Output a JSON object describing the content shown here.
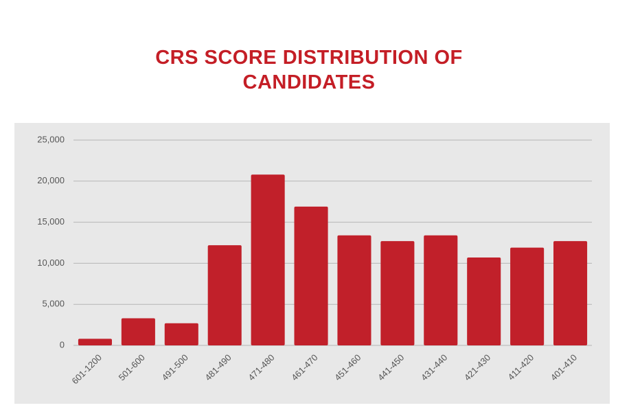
{
  "chart_data": {
    "type": "bar",
    "title": "CRS SCORE DISTRIBUTION OF CANDIDATES",
    "categories": [
      "601-1200",
      "501-600",
      "491-500",
      "481-490",
      "471-480",
      "461-470",
      "451-460",
      "441-450",
      "431-440",
      "421-430",
      "411-420",
      "401-410"
    ],
    "values": [
      800,
      3300,
      2700,
      12200,
      20800,
      16900,
      13400,
      12700,
      13400,
      10700,
      11900,
      12700
    ],
    "color": "#c1202a",
    "ylim": [
      0,
      25000
    ],
    "yticks": [
      0,
      {
        "value": 5000,
        "label": "5,000"
      },
      {
        "value": 10000,
        "label": "10,000"
      },
      {
        "value": 15000,
        "label": "15,000"
      },
      {
        "value": 20000,
        "label": "20,000"
      },
      {
        "value": 25000,
        "label": "25,000"
      }
    ],
    "grid": true
  }
}
